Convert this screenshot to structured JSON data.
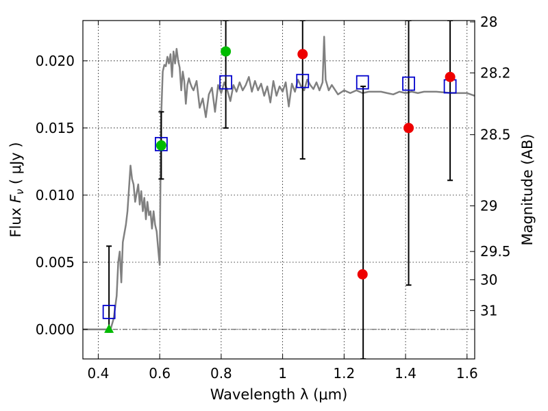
{
  "chart_data": {
    "type": "scatter",
    "xlabel": "Wavelength  λ (μm)",
    "ylabel_parts": [
      "Flux  ",
      "F",
      "ν",
      "  ( μJy )"
    ],
    "y2label": "Magnitude (AB)",
    "xlim": [
      0.35,
      1.625
    ],
    "ylim": [
      -0.0022,
      0.023
    ],
    "grid": true,
    "colors": {
      "sed": "#808080",
      "model": "#0000cc",
      "observed": "#ee0000",
      "detection": "#00bb00",
      "errorbar": "#000000"
    },
    "x_ticks": [
      {
        "v": 0.4,
        "label": "0.4"
      },
      {
        "v": 0.6,
        "label": "0.6"
      },
      {
        "v": 0.8,
        "label": "0.8"
      },
      {
        "v": 1.0,
        "label": "1"
      },
      {
        "v": 1.2,
        "label": "1.2"
      },
      {
        "v": 1.4,
        "label": "1.4"
      },
      {
        "v": 1.6,
        "label": "1.6"
      }
    ],
    "y_ticks": [
      {
        "v": 0.0,
        "label": "0.000"
      },
      {
        "v": 0.005,
        "label": "0.005"
      },
      {
        "v": 0.01,
        "label": "0.010"
      },
      {
        "v": 0.015,
        "label": "0.015"
      },
      {
        "v": 0.02,
        "label": "0.020"
      }
    ],
    "mag_ticks": [
      {
        "v": 0.0229,
        "label": "28"
      },
      {
        "v": 0.0191,
        "label": "28.2"
      },
      {
        "v": 0.0145,
        "label": "28.5"
      },
      {
        "v": 0.0092,
        "label": "29"
      },
      {
        "v": 0.0058,
        "label": "29.5"
      },
      {
        "v": 0.0037,
        "label": "30"
      },
      {
        "v": 0.0014,
        "label": "31"
      }
    ],
    "sed_spectrum": {
      "x": [
        0.35,
        0.42,
        0.44,
        0.45,
        0.46,
        0.465,
        0.47,
        0.475,
        0.48,
        0.49,
        0.495,
        0.5,
        0.505,
        0.51,
        0.515,
        0.52,
        0.53,
        0.535,
        0.54,
        0.545,
        0.55,
        0.555,
        0.56,
        0.565,
        0.57,
        0.575,
        0.58,
        0.585,
        0.59,
        0.595,
        0.598,
        0.6,
        0.602,
        0.605,
        0.61,
        0.615,
        0.62,
        0.625,
        0.63,
        0.635,
        0.64,
        0.645,
        0.65,
        0.655,
        0.66,
        0.665,
        0.67,
        0.675,
        0.68,
        0.685,
        0.69,
        0.695,
        0.7,
        0.705,
        0.71,
        0.72,
        0.73,
        0.74,
        0.75,
        0.76,
        0.77,
        0.78,
        0.79,
        0.8,
        0.81,
        0.82,
        0.83,
        0.84,
        0.85,
        0.86,
        0.87,
        0.88,
        0.89,
        0.9,
        0.91,
        0.92,
        0.93,
        0.94,
        0.95,
        0.96,
        0.97,
        0.98,
        0.99,
        1.0,
        1.01,
        1.02,
        1.03,
        1.04,
        1.05,
        1.06,
        1.07,
        1.08,
        1.09,
        1.1,
        1.11,
        1.12,
        1.13,
        1.135,
        1.14,
        1.15,
        1.16,
        1.18,
        1.2,
        1.22,
        1.24,
        1.26,
        1.28,
        1.3,
        1.32,
        1.34,
        1.36,
        1.38,
        1.4,
        1.42,
        1.44,
        1.46,
        1.5,
        1.55,
        1.6,
        1.625
      ],
      "y": [
        0.0,
        0.0,
        0.0,
        0.0008,
        0.0025,
        0.005,
        0.0058,
        0.0035,
        0.0065,
        0.0078,
        0.0088,
        0.0105,
        0.0122,
        0.0112,
        0.0108,
        0.0095,
        0.0108,
        0.0093,
        0.0103,
        0.0088,
        0.0098,
        0.0082,
        0.0095,
        0.0085,
        0.0088,
        0.0075,
        0.0088,
        0.0078,
        0.0073,
        0.006,
        0.0052,
        0.0048,
        0.01,
        0.016,
        0.0192,
        0.0197,
        0.0196,
        0.0203,
        0.0198,
        0.0205,
        0.0188,
        0.0207,
        0.0198,
        0.0209,
        0.02,
        0.0195,
        0.0178,
        0.0192,
        0.0185,
        0.0168,
        0.0182,
        0.0187,
        0.0183,
        0.018,
        0.0178,
        0.0185,
        0.0165,
        0.0172,
        0.0158,
        0.0175,
        0.018,
        0.0162,
        0.0182,
        0.0176,
        0.0184,
        0.0178,
        0.017,
        0.0182,
        0.0177,
        0.0184,
        0.0178,
        0.0182,
        0.0188,
        0.0177,
        0.0185,
        0.0178,
        0.0183,
        0.0174,
        0.0181,
        0.0169,
        0.0185,
        0.0174,
        0.0181,
        0.0177,
        0.0184,
        0.0166,
        0.0183,
        0.0177,
        0.0186,
        0.0181,
        0.0178,
        0.0186,
        0.0182,
        0.0179,
        0.0184,
        0.0178,
        0.0184,
        0.0218,
        0.0186,
        0.0178,
        0.0182,
        0.0175,
        0.0178,
        0.0176,
        0.0178,
        0.0176,
        0.0177,
        0.0177,
        0.0177,
        0.0176,
        0.0175,
        0.0177,
        0.0176,
        0.0177,
        0.0176,
        0.0177,
        0.0177,
        0.0176,
        0.0176,
        0.0174
      ]
    },
    "model_points": {
      "x": [
        0.435,
        0.605,
        0.815,
        1.065,
        1.26,
        1.41,
        1.545
      ],
      "y": [
        0.0013,
        0.0138,
        0.0184,
        0.0185,
        0.0184,
        0.0183,
        0.0181
      ]
    },
    "observed_points": {
      "x": [
        1.065,
        1.26,
        1.41,
        1.545
      ],
      "y": [
        0.0205,
        0.0041,
        0.015,
        0.0188
      ]
    },
    "detection_points": {
      "x": [
        0.605,
        0.815
      ],
      "y": [
        0.0137,
        0.0207
      ]
    },
    "upper_limits": {
      "x": [
        0.435
      ],
      "y": [
        0.0
      ]
    },
    "error_bars": [
      {
        "x": 0.435,
        "low": -0.0002,
        "high": 0.0062
      },
      {
        "x": 0.605,
        "low": 0.0112,
        "high": 0.0162
      },
      {
        "x": 0.815,
        "low": 0.015,
        "high": 0.023
      },
      {
        "x": 1.065,
        "low": 0.0127,
        "high": 0.023
      },
      {
        "x": 1.262,
        "low": -0.0022,
        "high": 0.0181
      },
      {
        "x": 1.41,
        "low": 0.0033,
        "high": 0.023
      },
      {
        "x": 1.545,
        "low": 0.0111,
        "high": 0.023
      }
    ]
  }
}
